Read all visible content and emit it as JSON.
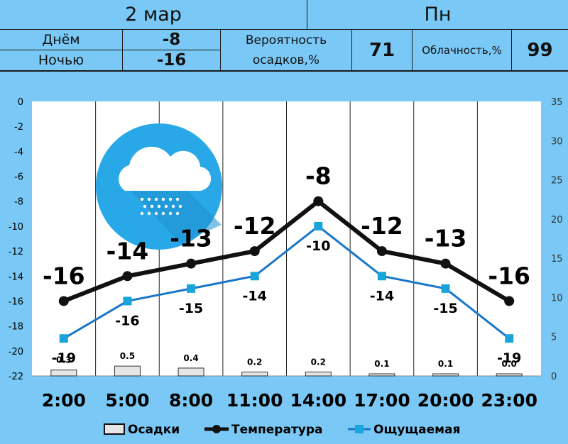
{
  "header": {
    "date": "2 мар",
    "weekday": "Пн",
    "day_label": "Днём",
    "day_value": "-8",
    "night_label": "Ночью",
    "night_value": "-16",
    "precip_prob_label_1": "Вероятность",
    "precip_prob_label_2": "осадков,%",
    "precip_prob_value": "71",
    "cloudiness_label": "Облачность,%",
    "cloudiness_value": "99"
  },
  "weather_icon": "cloud-snow-icon",
  "colors": {
    "background": "#79c8f5",
    "plot_background": "#ffffff",
    "temperature": "#111111",
    "feels_like": "#1976c8",
    "feels_like_marker": "#19a4dc",
    "icon_circle": "#29a8e8"
  },
  "chart_data": {
    "type": "line",
    "categories": [
      "2:00",
      "5:00",
      "8:00",
      "11:00",
      "14:00",
      "17:00",
      "20:00",
      "23:00"
    ],
    "series": [
      {
        "name": "Температура",
        "values": [
          -16,
          -14,
          -13,
          -12,
          -8,
          -12,
          -13,
          -16
        ],
        "labels": [
          "-16",
          "-14",
          "-13",
          "-12",
          "-8",
          "-12",
          "-13",
          "-16"
        ]
      },
      {
        "name": "Ощущаемая",
        "values": [
          -19,
          -16,
          -15,
          -14,
          -10,
          -14,
          -15,
          -19
        ],
        "labels": [
          "-19",
          "-16",
          "-15",
          "-14",
          "-10",
          "-14",
          "-15",
          "-19"
        ]
      },
      {
        "name": "Осадки",
        "type": "bar",
        "axis": "right",
        "values": [
          0.3,
          0.5,
          0.4,
          0.2,
          0.2,
          0.1,
          0.1,
          0.0
        ],
        "labels": [
          "0.3",
          "0.5",
          "0.4",
          "0.2",
          "0.2",
          "0.1",
          "0.1",
          "0.0"
        ]
      }
    ],
    "y_left": {
      "range": [
        -22,
        0
      ],
      "ticks": [
        "0",
        "-2",
        "-4",
        "-6",
        "-8",
        "-10",
        "-12",
        "-14",
        "-16",
        "-18",
        "-20",
        "-22"
      ]
    },
    "y_right": {
      "range": [
        0,
        35
      ],
      "ticks": [
        "35",
        "30",
        "25",
        "20",
        "15",
        "10",
        "5",
        "0"
      ]
    },
    "grid": "vertical",
    "legend_position": "bottom",
    "legend": [
      "Осадки",
      "Температура",
      "Ощущаемая"
    ]
  }
}
